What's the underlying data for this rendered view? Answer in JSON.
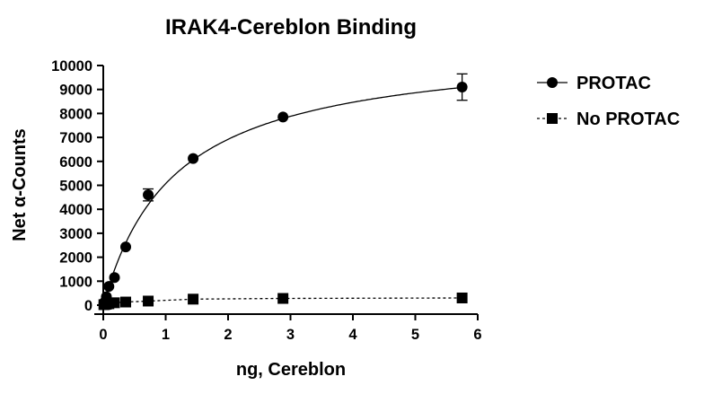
{
  "chart_data": {
    "type": "scatter",
    "title": "IRAK4-Cereblon Binding",
    "xlabel": "ng, Cereblon",
    "ylabel": "Net α-Counts",
    "xlim": [
      0,
      6
    ],
    "ylim": [
      0,
      10000
    ],
    "x_ticks": [
      "0",
      "1",
      "2",
      "3",
      "4",
      "5",
      "6"
    ],
    "y_ticks": [
      "0",
      "1000",
      "2000",
      "3000",
      "4000",
      "5000",
      "6000",
      "7000",
      "8000",
      "9000",
      "10000"
    ],
    "grid": false,
    "legend_position": "right",
    "series": [
      {
        "name": "PROTAC",
        "marker": "circle",
        "line_style": "solid fitted curve",
        "color": "#000000",
        "x": [
          0.01,
          0.03,
          0.05,
          0.09,
          0.18,
          0.36,
          0.72,
          1.44,
          2.88,
          5.75
        ],
        "y": [
          50,
          150,
          350,
          780,
          1150,
          2430,
          4600,
          6120,
          7850,
          9100
        ],
        "error": [
          0,
          0,
          0,
          0,
          0,
          0,
          250,
          0,
          0,
          550
        ]
      },
      {
        "name": "No PROTAC",
        "marker": "square",
        "line_style": "dashed",
        "color": "#000000",
        "x": [
          0.01,
          0.03,
          0.05,
          0.09,
          0.18,
          0.36,
          0.72,
          1.44,
          2.88,
          5.75
        ],
        "y": [
          20,
          30,
          40,
          60,
          100,
          130,
          170,
          250,
          280,
          300
        ],
        "error": [
          0,
          0,
          0,
          0,
          0,
          0,
          0,
          0,
          0,
          0
        ]
      }
    ]
  }
}
